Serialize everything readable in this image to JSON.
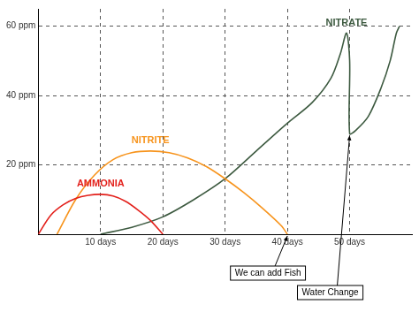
{
  "chart_data": {
    "type": "line",
    "series": [
      {
        "name": "AMMONIA",
        "color": "#e3201b",
        "x": [
          0,
          2,
          4,
          6,
          8,
          10,
          12,
          14,
          16,
          18,
          20
        ],
        "values": [
          0,
          5.5,
          8.5,
          10.3,
          11.2,
          11.5,
          11,
          9.5,
          7,
          4,
          0
        ]
      },
      {
        "name": "NITRITE",
        "color": "#f7941d",
        "x": [
          3,
          6,
          9,
          12,
          15,
          18,
          21,
          24,
          27,
          30,
          33,
          36,
          39,
          40
        ],
        "values": [
          0,
          10,
          17,
          21.5,
          23.5,
          24,
          23.5,
          22,
          19.5,
          16,
          12,
          7.5,
          2.5,
          0
        ]
      },
      {
        "name": "NITRATE",
        "color": "#3d5a40",
        "x": [
          10,
          15,
          20,
          25,
          30,
          35,
          40,
          44,
          47,
          48.5,
          49.5,
          50,
          50,
          51,
          53,
          55,
          56.5,
          57.5,
          58
        ],
        "values": [
          0,
          2,
          5,
          10,
          16,
          24,
          32,
          38,
          45,
          52,
          58,
          50,
          29,
          30,
          34,
          42,
          50,
          58,
          60
        ]
      }
    ],
    "xlim": [
      0,
      60
    ],
    "xticks": [
      {
        "value": 10,
        "label": "10 days"
      },
      {
        "value": 20,
        "label": "20 days"
      },
      {
        "value": 30,
        "label": "30 days"
      },
      {
        "value": 40,
        "label": "40 days"
      },
      {
        "value": 50,
        "label": "50 days"
      }
    ],
    "ylim": [
      0,
      65
    ],
    "yticks": [
      {
        "value": 20,
        "label": "20 ppm"
      },
      {
        "value": 40,
        "label": "40 ppm"
      },
      {
        "value": 60,
        "label": "60 ppm"
      }
    ],
    "grid": true,
    "annotations": [
      {
        "text": "We can add Fish",
        "x": 40,
        "y": 0
      },
      {
        "text": "Water Change",
        "x": 50,
        "y": 29
      }
    ]
  }
}
